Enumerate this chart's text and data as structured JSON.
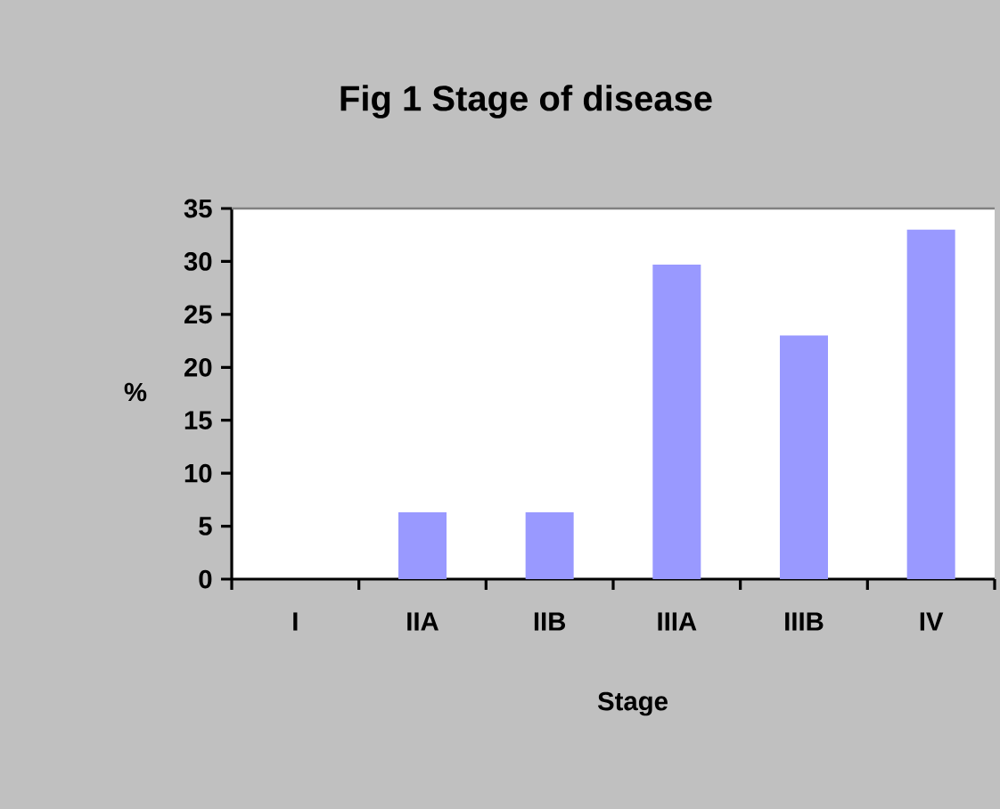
{
  "chart_data": {
    "type": "bar",
    "title": "Fig 1 Stage of disease",
    "xlabel": "Stage",
    "ylabel": "%",
    "categories": [
      "I",
      "IIA",
      "IIB",
      "IIIA",
      "IIIB",
      "IV"
    ],
    "values": [
      0,
      6.3,
      6.3,
      29.7,
      23.0,
      33.0
    ],
    "color": "#9999ff",
    "ylim": [
      0,
      35
    ],
    "yticks": [
      0,
      5,
      10,
      15,
      20,
      25,
      30,
      35
    ],
    "grid": false
  }
}
